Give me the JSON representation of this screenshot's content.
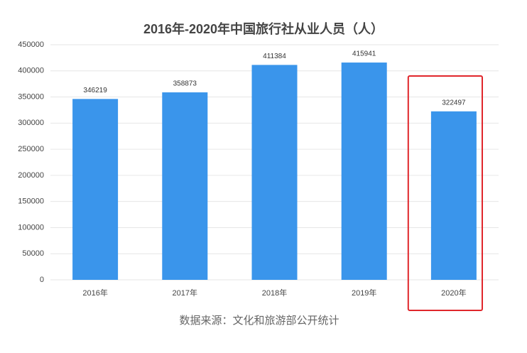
{
  "chart_data": {
    "type": "bar",
    "title": "2016年-2020年中国旅行社从业人员（人）",
    "categories": [
      "2016年",
      "2017年",
      "2018年",
      "2019年",
      "2020年"
    ],
    "values": [
      346219,
      358873,
      411384,
      415941,
      322497
    ],
    "color": "#3a95eb",
    "ylim": [
      0,
      450000
    ],
    "yticks": [
      0,
      50000,
      100000,
      150000,
      200000,
      250000,
      300000,
      350000,
      400000,
      450000
    ],
    "grid": true,
    "source": "数据来源：文化和旅游部公开统计"
  }
}
